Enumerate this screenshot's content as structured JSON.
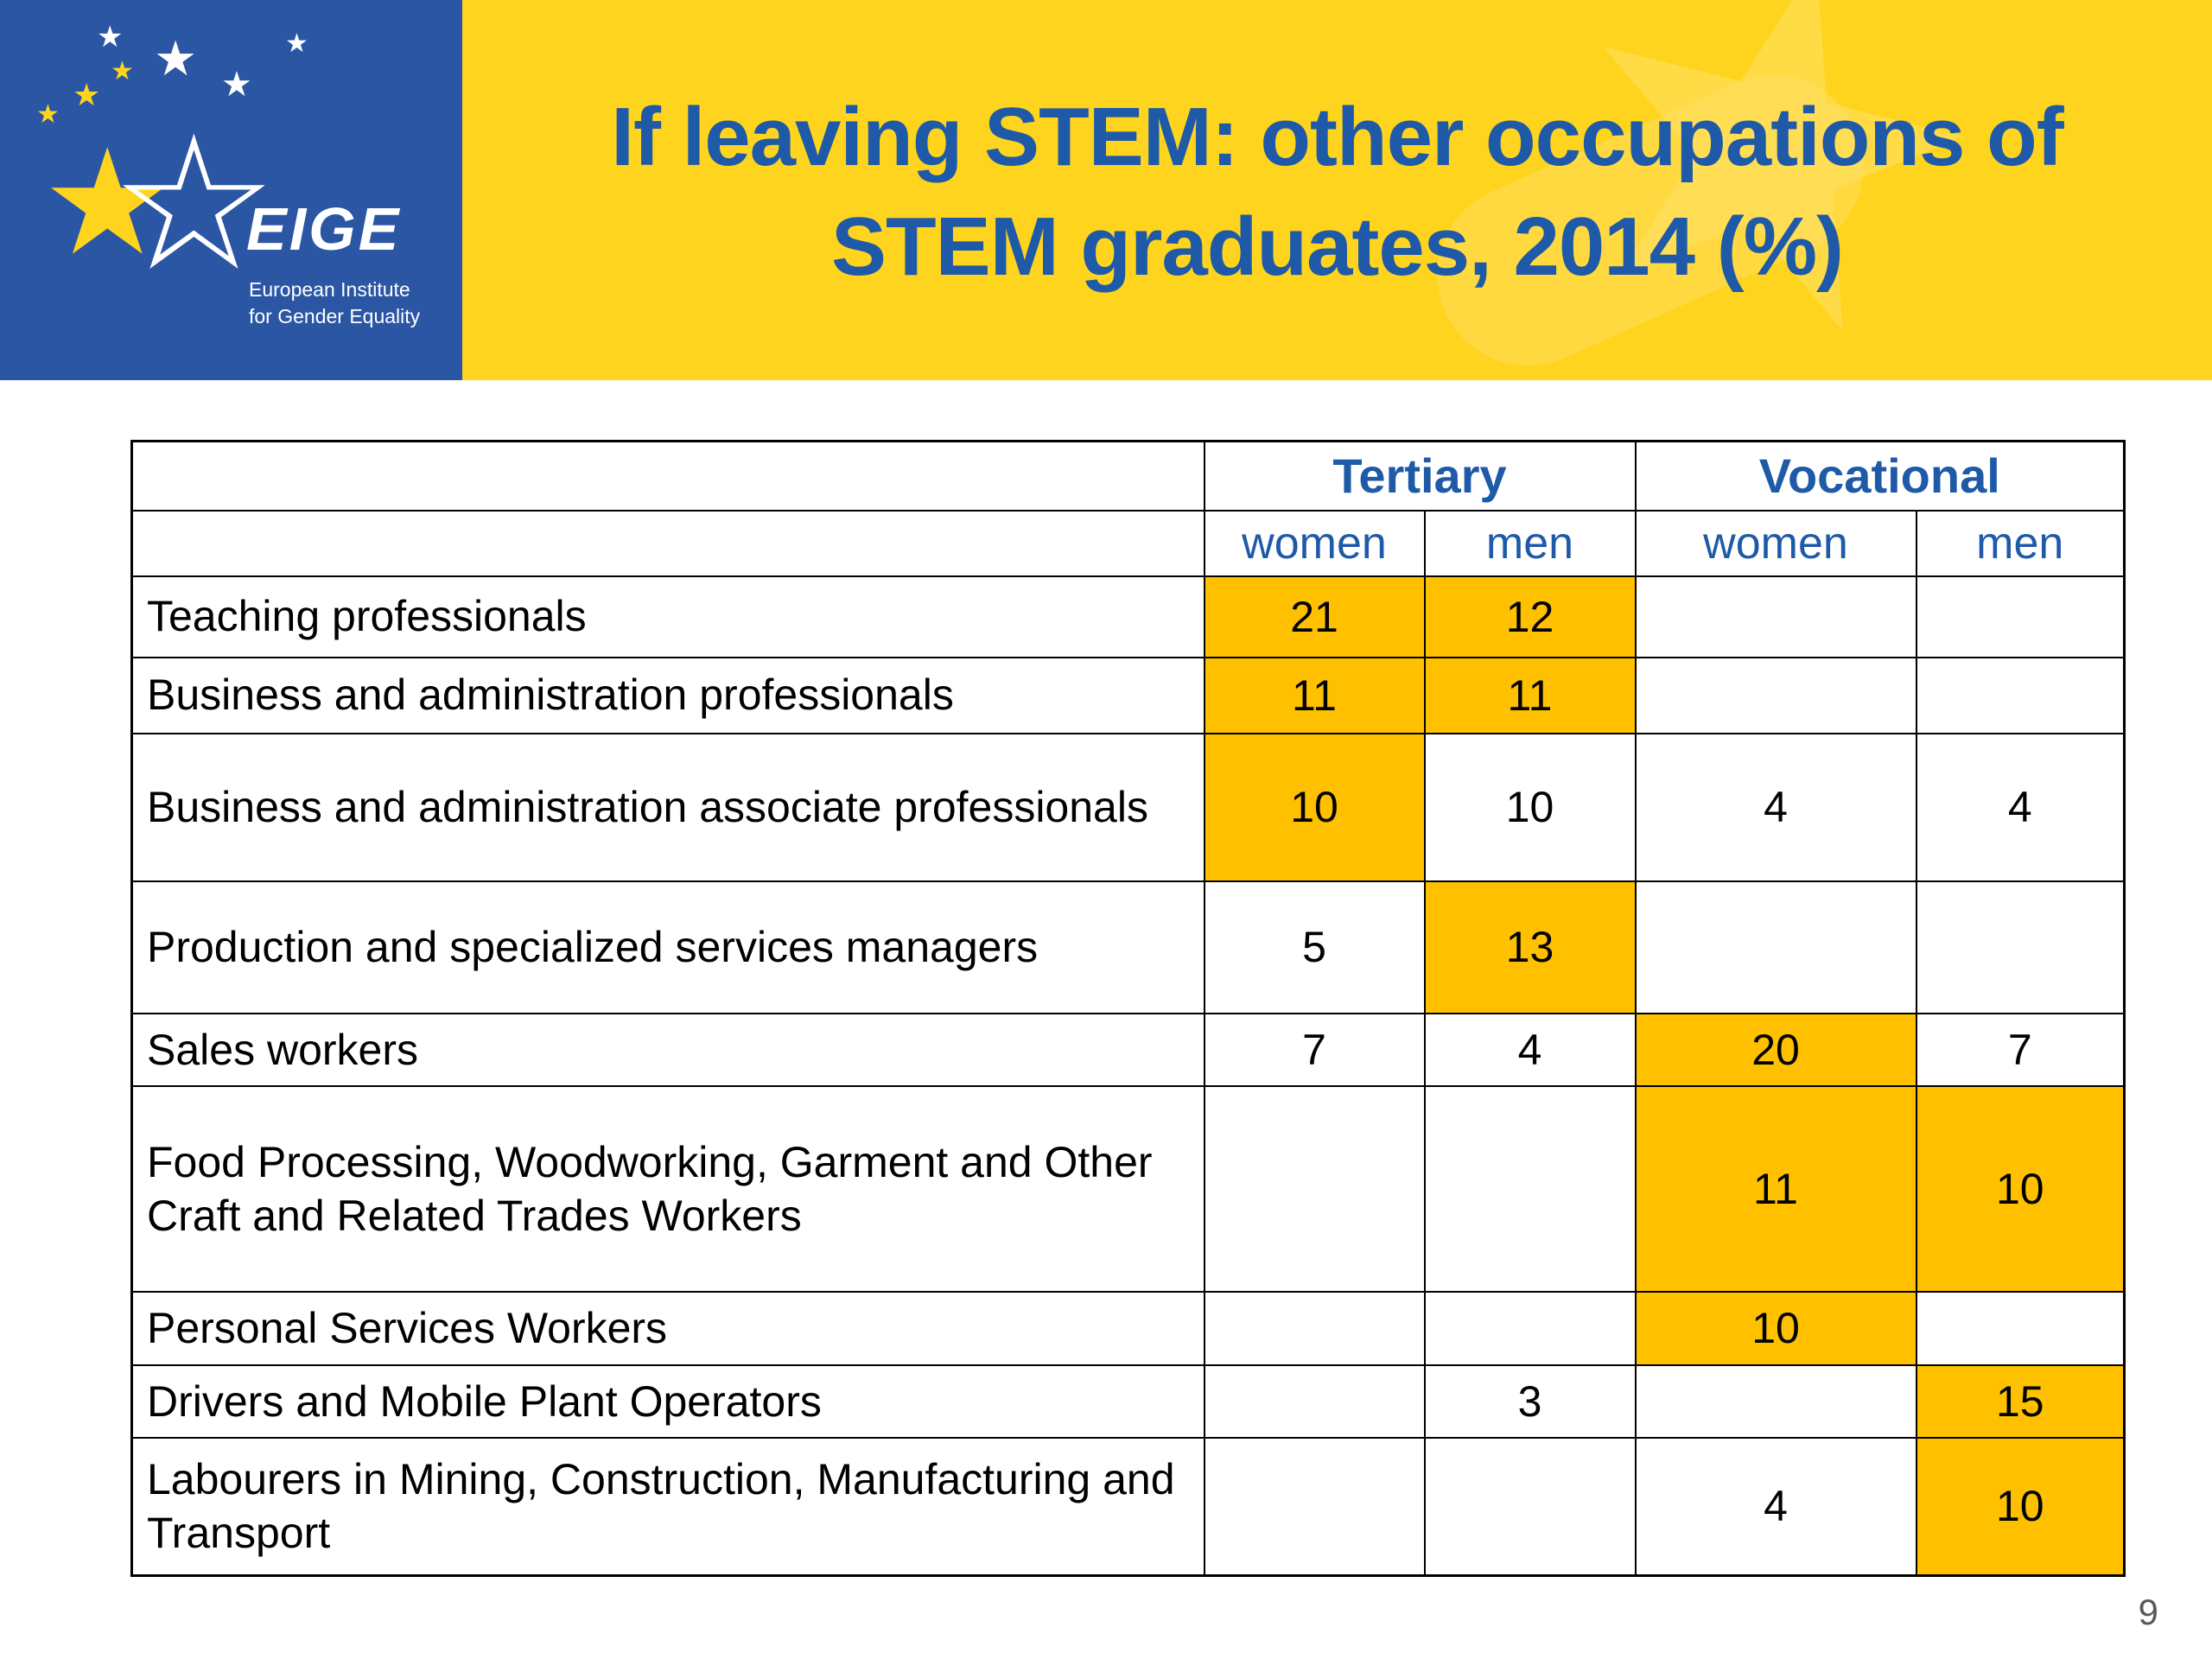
{
  "slide": {
    "title_line1": "If leaving STEM: other occupations of",
    "title_line2": "STEM graduates, 2014 (%)",
    "page_number": "9"
  },
  "logo": {
    "word": "EIGE",
    "org_line1": "European Institute",
    "org_line2": "for Gender Equality"
  },
  "colors": {
    "banner_yellow": "#FFD41E",
    "logo_blue": "#2A56A4",
    "title_blue": "#1E5AA8",
    "cell_highlight": "#FFC000",
    "table_border": "#000000"
  },
  "chart_data": {
    "type": "table",
    "column_groups": [
      "Tertiary",
      "Vocational"
    ],
    "columns": [
      "women",
      "men",
      "women",
      "men"
    ],
    "rows": [
      {
        "label": "Teaching professionals",
        "values": [
          "21",
          "12",
          "",
          ""
        ],
        "highlight": [
          true,
          true,
          false,
          false
        ]
      },
      {
        "label": "Business and administration professionals",
        "values": [
          "11",
          "11",
          "",
          ""
        ],
        "highlight": [
          true,
          true,
          false,
          false
        ]
      },
      {
        "label": "Business and administration associate professionals",
        "values": [
          "10",
          "10",
          "4",
          "4"
        ],
        "highlight": [
          true,
          false,
          false,
          false
        ]
      },
      {
        "label": "Production and specialized services managers",
        "values": [
          "5",
          "13",
          "",
          ""
        ],
        "highlight": [
          false,
          true,
          false,
          false
        ]
      },
      {
        "label": "Sales workers",
        "values": [
          "7",
          "4",
          "20",
          "7"
        ],
        "highlight": [
          false,
          false,
          true,
          false
        ]
      },
      {
        "label": "Food Processing, Woodworking, Garment and Other Craft and Related Trades Workers",
        "values": [
          "",
          "",
          "11",
          "10"
        ],
        "highlight": [
          false,
          false,
          true,
          true
        ]
      },
      {
        "label": "Personal Services Workers",
        "values": [
          "",
          "",
          "10",
          ""
        ],
        "highlight": [
          false,
          false,
          true,
          false
        ]
      },
      {
        "label": "Drivers and Mobile Plant Operators",
        "values": [
          "",
          "3",
          "",
          "15"
        ],
        "highlight": [
          false,
          false,
          false,
          true
        ]
      },
      {
        "label": "Labourers in Mining, Construction, Manufacturing and Transport",
        "values": [
          "",
          "",
          "4",
          "10"
        ],
        "highlight": [
          false,
          false,
          false,
          true
        ]
      }
    ]
  }
}
